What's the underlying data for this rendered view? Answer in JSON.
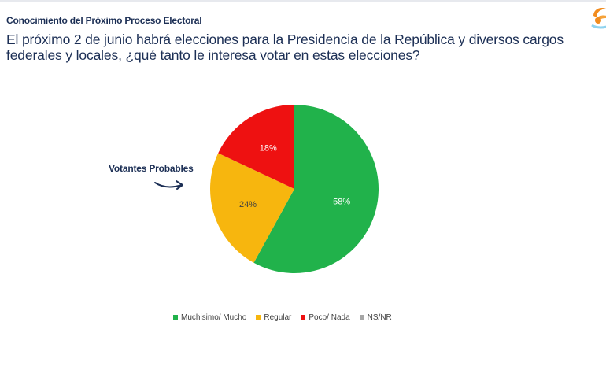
{
  "section_title": "Conocimiento del Próximo Proceso Electoral",
  "question": "El próximo 2 de junio habrá elecciones para la Presidencia de la República y diversos cargos federales y locales, ¿qué tanto le interesa votar en estas elecciones?",
  "annotation": "Votantes Probables",
  "chart_data": {
    "type": "pie",
    "slices": [
      {
        "label": "Muchisimo/ Mucho",
        "value": 58,
        "value_label": "58%",
        "color": "#21b24b",
        "label_color": "#ffffff"
      },
      {
        "label": "Regular",
        "value": 24,
        "value_label": "24%",
        "color": "#f7b60e",
        "label_color": "#404040"
      },
      {
        "label": "Poco/ Nada",
        "value": 18,
        "value_label": "18%",
        "color": "#ee1111",
        "label_color": "#ffffff"
      },
      {
        "label": "NS/NR",
        "value": 0,
        "value_label": "",
        "color": "#a6a6a6",
        "label_color": "#404040"
      }
    ],
    "legend_position": "bottom"
  }
}
